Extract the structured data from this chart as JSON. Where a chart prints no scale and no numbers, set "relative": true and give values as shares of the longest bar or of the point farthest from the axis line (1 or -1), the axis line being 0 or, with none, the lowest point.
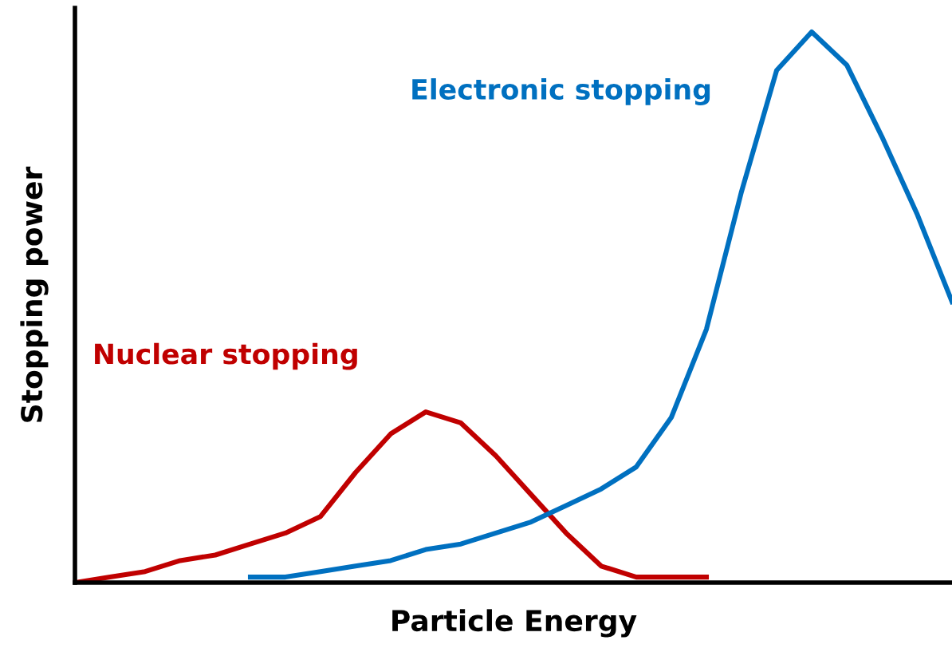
{
  "chart_data": {
    "type": "line",
    "relative": true,
    "xlabel": "Particle Energy",
    "ylabel": "Stopping power",
    "legend": false,
    "marker": "none",
    "line_style": "solid",
    "categories": [
      null,
      null,
      null,
      null,
      null,
      null,
      null,
      null,
      null,
      null,
      null,
      null,
      null,
      null,
      null,
      null,
      null,
      null,
      null,
      null,
      null,
      null,
      null,
      null,
      null,
      null
    ],
    "series": [
      {
        "name": "Nuclear stopping",
        "color": "#c00000",
        "values": [
          0,
          0.01,
          0.02,
          0.04,
          0.05,
          0.07,
          0.09,
          0.12,
          0.2,
          0.27,
          0.31,
          0.29,
          0.23,
          0.16,
          0.09,
          0.03,
          0.01,
          0.01,
          0.01,
          null,
          null,
          null,
          null,
          null,
          null,
          null
        ]
      },
      {
        "name": "Electronic stopping",
        "color": "#0070c0",
        "values": [
          null,
          null,
          null,
          null,
          null,
          0.01,
          0.01,
          0.02,
          0.03,
          0.04,
          0.06,
          0.07,
          0.09,
          0.11,
          0.14,
          0.17,
          0.21,
          0.3,
          0.46,
          0.71,
          0.93,
          1.0,
          0.94,
          0.81,
          0.67,
          0.51
        ]
      }
    ]
  }
}
